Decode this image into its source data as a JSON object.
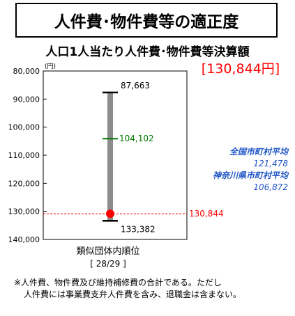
{
  "header": {
    "title": "人件費･物件費等の適正度",
    "subtitle": "人口1人当たり人件費･物件費等決算額",
    "value_display": "[130,844円]"
  },
  "chart_data": {
    "type": "range",
    "y_unit": "(円)",
    "y_axis_inverted": true,
    "ylim": [
      80000,
      140000
    ],
    "y_ticks": [
      "80,000",
      "90,000",
      "100,000",
      "110,000",
      "120,000",
      "130,000",
      "140,000"
    ],
    "y_tick_values": [
      80000,
      90000,
      100000,
      110000,
      120000,
      130000,
      140000
    ],
    "range_min": 87663,
    "range_min_label": "87,663",
    "range_max": 133382,
    "range_max_label": "133,382",
    "average": 104102,
    "average_label": "104,102",
    "value": 130844,
    "value_label": "130,844",
    "colors": {
      "range_bar": "#8c8c8c",
      "average": "#007a00",
      "value": "#ff0000"
    }
  },
  "rank": {
    "label": "類似団体内順位",
    "value": "[ 28/29 ]"
  },
  "stats": {
    "national_label": "全国市町村平均",
    "national_value": "121,478",
    "prefecture_label": "神奈川県市町村平均",
    "prefecture_value": "106,872"
  },
  "footnote": {
    "line1": "※人件費、物件費及び維持補修費の合計である。ただし",
    "line2": "人件費には事業費支弁人件費を含み、退職金は含まない。"
  }
}
